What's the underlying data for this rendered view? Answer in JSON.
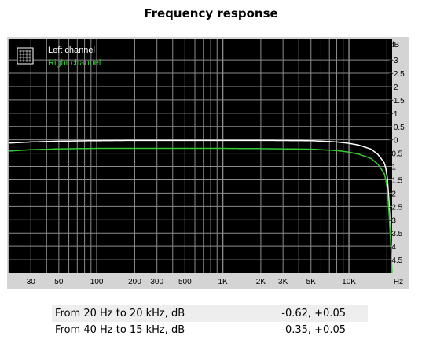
{
  "title": "Frequency response",
  "colors": {
    "plot_bg": "#000000",
    "frame_bg": "#d4d4d4",
    "grid": "#8c8c8c",
    "left_channel": "#ffffff",
    "right_channel": "#33cc33"
  },
  "chart_data": {
    "type": "line",
    "title": "Frequency response",
    "x_scale": "log",
    "xlim": [
      20,
      22000
    ],
    "ylim": [
      -5,
      3.8
    ],
    "xlabel": "",
    "ylabel": "",
    "x_unit": "Hz",
    "y_unit": "dB",
    "x_tick_labels": [
      {
        "value": 30,
        "label": "30"
      },
      {
        "value": 50,
        "label": "50"
      },
      {
        "value": 100,
        "label": "100"
      },
      {
        "value": 200,
        "label": "200"
      },
      {
        "value": 300,
        "label": "300"
      },
      {
        "value": 500,
        "label": "500"
      },
      {
        "value": 1000,
        "label": "1K"
      },
      {
        "value": 2000,
        "label": "2K"
      },
      {
        "value": 3000,
        "label": "3K"
      },
      {
        "value": 5000,
        "label": "5K"
      },
      {
        "value": 10000,
        "label": "10K"
      }
    ],
    "y_tick_labels": [
      {
        "value": 3,
        "label": "+3"
      },
      {
        "value": 2.5,
        "label": "+2.5"
      },
      {
        "value": 2,
        "label": "+2"
      },
      {
        "value": 1.5,
        "label": "+1.5"
      },
      {
        "value": 1,
        "label": "+1"
      },
      {
        "value": 0.5,
        "label": "+0.5"
      },
      {
        "value": 0,
        "label": "+0"
      },
      {
        "value": -0.5,
        "label": "-0.5"
      },
      {
        "value": -1,
        "label": "-1"
      },
      {
        "value": -1.5,
        "label": "-1.5"
      },
      {
        "value": -2,
        "label": "-2"
      },
      {
        "value": -2.5,
        "label": "-2.5"
      },
      {
        "value": -3,
        "label": "-3"
      },
      {
        "value": -3.5,
        "label": "-3.5"
      },
      {
        "value": -4,
        "label": "-4"
      },
      {
        "value": -4.5,
        "label": "-4.5"
      }
    ],
    "grid": true,
    "legend_position": "top-left",
    "series": [
      {
        "name": "Left channel",
        "color": "#ffffff",
        "x": [
          20,
          30,
          50,
          100,
          200,
          500,
          1000,
          2000,
          5000,
          8000,
          10000,
          12000,
          15000,
          17000,
          19000,
          20000,
          21000,
          22000
        ],
        "y": [
          -0.12,
          -0.08,
          -0.05,
          -0.03,
          -0.02,
          -0.02,
          -0.02,
          -0.02,
          -0.03,
          -0.08,
          -0.13,
          -0.2,
          -0.35,
          -0.55,
          -0.85,
          -1.2,
          -2.6,
          -5.0
        ]
      },
      {
        "name": "Right channel",
        "color": "#33cc33",
        "x": [
          20,
          30,
          50,
          100,
          200,
          500,
          1000,
          2000,
          5000,
          8000,
          10000,
          12000,
          15000,
          17000,
          19000,
          20000,
          21000,
          22000
        ],
        "y": [
          -0.42,
          -0.37,
          -0.34,
          -0.32,
          -0.32,
          -0.32,
          -0.32,
          -0.33,
          -0.35,
          -0.4,
          -0.46,
          -0.54,
          -0.7,
          -0.92,
          -1.25,
          -1.65,
          -3.0,
          -5.0
        ]
      }
    ]
  },
  "table": {
    "rows": [
      {
        "label": "From 20 Hz to 20 kHz, dB",
        "value": "-0.62, +0.05"
      },
      {
        "label": "From 40 Hz to 15 kHz, dB",
        "value": "-0.35, +0.05"
      }
    ]
  }
}
